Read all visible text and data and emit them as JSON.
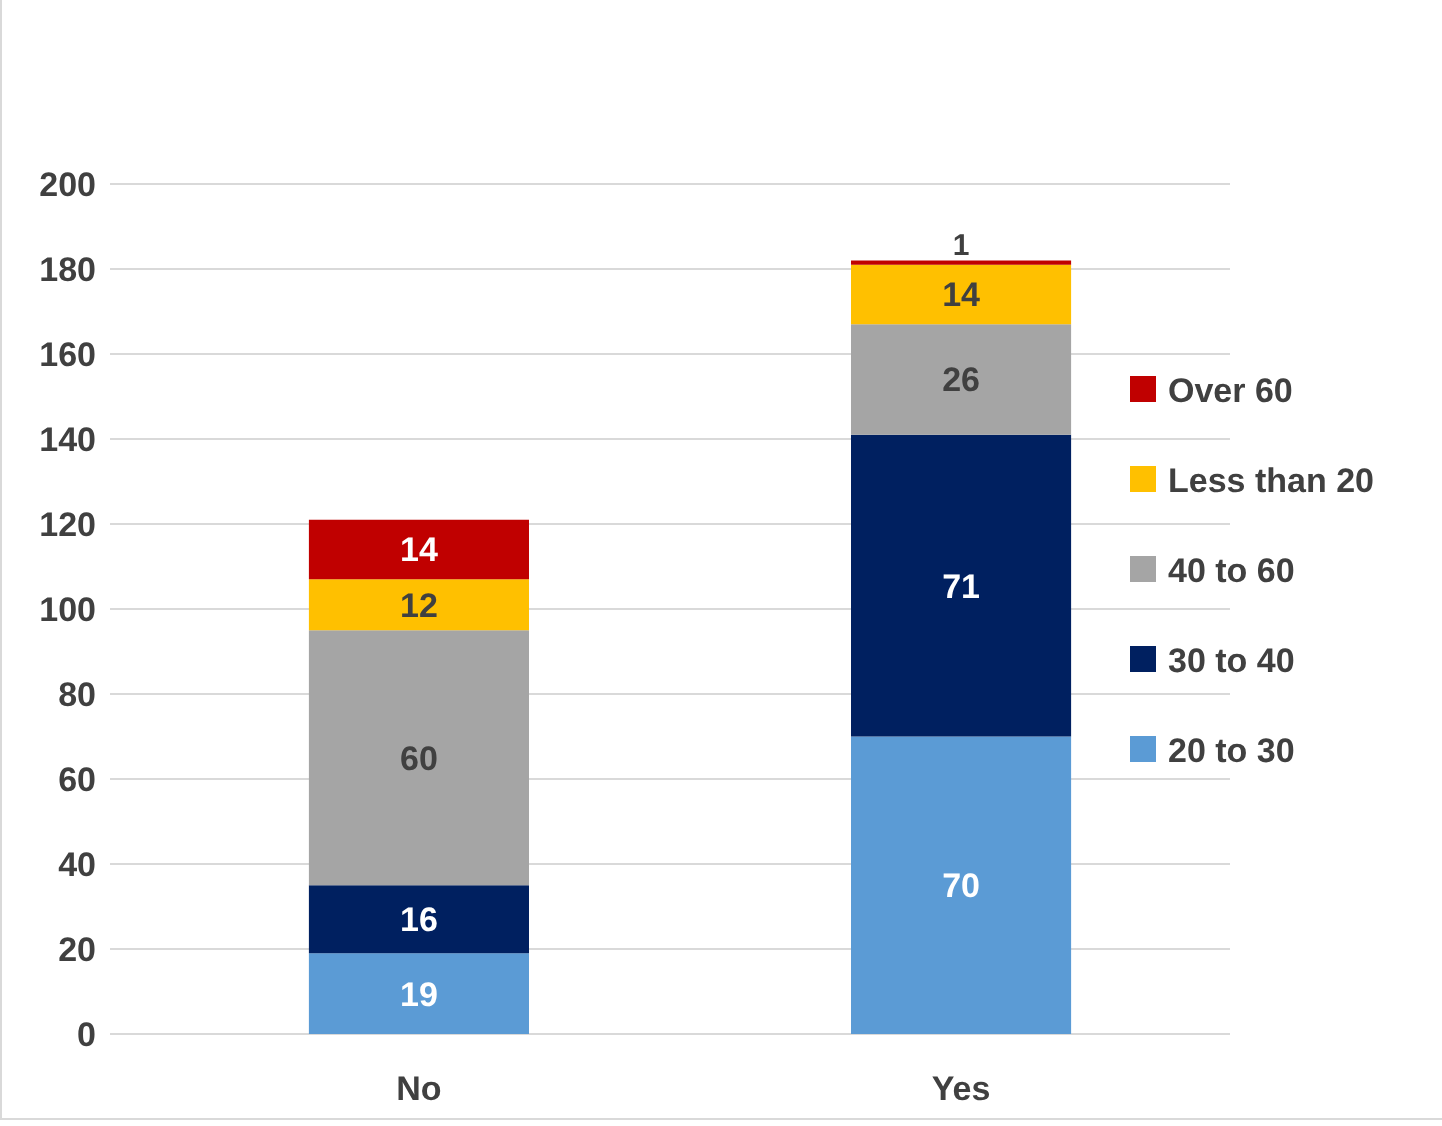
{
  "chart_data": {
    "type": "bar",
    "stacked": true,
    "categories": [
      "No",
      "Yes"
    ],
    "series": [
      {
        "name": "20 to 30",
        "color": "#5b9bd5",
        "values": [
          19,
          70
        ]
      },
      {
        "name": "30 to 40",
        "color": "#002060",
        "values": [
          16,
          71
        ]
      },
      {
        "name": "40 to 60",
        "color": "#a5a5a5",
        "values": [
          60,
          26
        ]
      },
      {
        "name": "Less than 20",
        "color": "#ffc000",
        "values": [
          12,
          14
        ]
      },
      {
        "name": "Over 60",
        "color": "#c00000",
        "values": [
          14,
          1
        ]
      }
    ],
    "ylim": [
      0,
      200
    ],
    "yticks": [
      0,
      20,
      40,
      60,
      80,
      100,
      120,
      140,
      160,
      180,
      200
    ],
    "grid": "y",
    "legend": "right",
    "data_labels": true
  }
}
